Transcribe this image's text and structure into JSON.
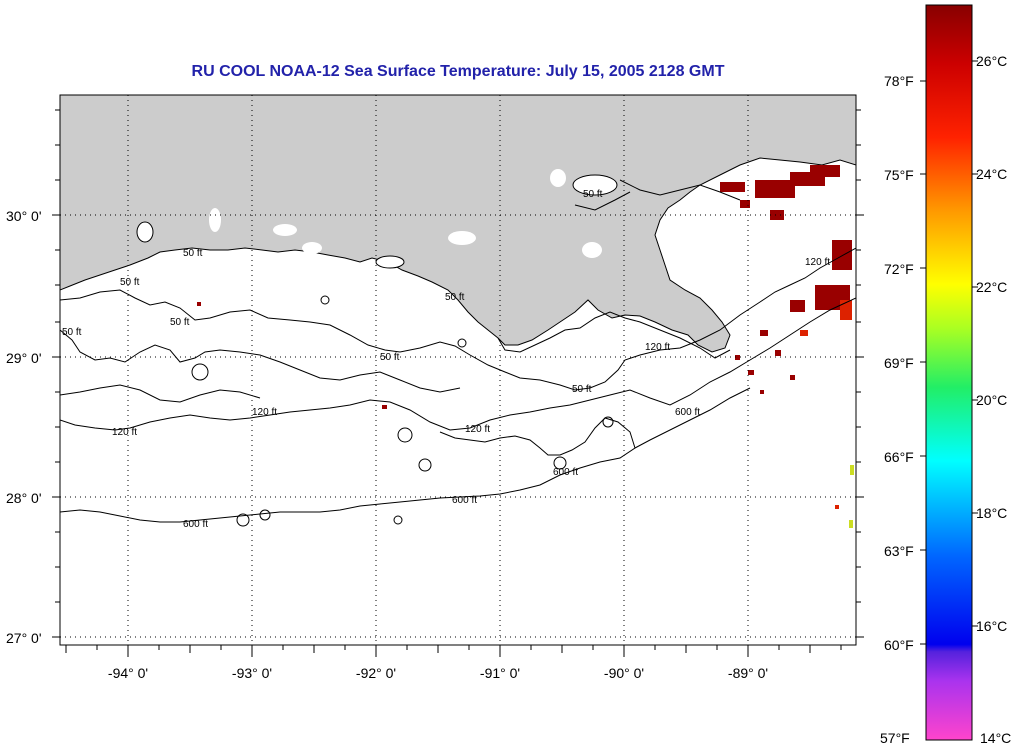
{
  "title": "RU COOL  NOAA-12  Sea Surface Temperature:  July 15, 2005 2128 GMT",
  "lat_labels": [
    "30° 0'",
    "29° 0'",
    "28° 0'",
    "27° 0'"
  ],
  "lon_labels": [
    "-94° 0'",
    "-93° 0'",
    "-92° 0'",
    "-91° 0'",
    "-90° 0'",
    "-89° 0'"
  ],
  "contour_labels": {
    "ft50": "50 ft",
    "ft120": "120 ft",
    "ft600": "600 ft"
  },
  "colorbar": {
    "fahrenheit": [
      "78°F",
      "75°F",
      "72°F",
      "69°F",
      "66°F",
      "63°F",
      "60°F",
      "57°F"
    ],
    "celsius": [
      "26°C",
      "24°C",
      "22°C",
      "20°C",
      "18°C",
      "16°C",
      "14°C"
    ]
  },
  "colors": {
    "land": "#cccccc",
    "title": "#2222aa",
    "hot": "#990000"
  }
}
